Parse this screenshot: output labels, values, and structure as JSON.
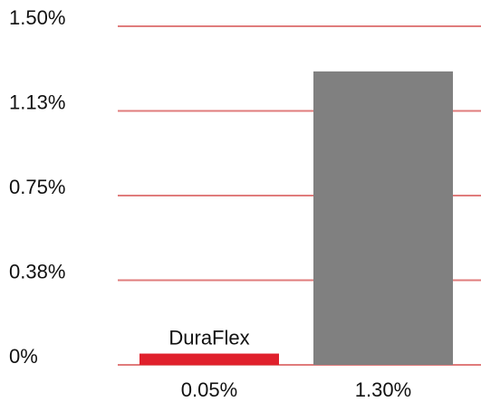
{
  "chart_data": {
    "type": "bar",
    "categories": [
      "0.05%",
      "1.30%"
    ],
    "values": [
      0.05,
      1.3
    ],
    "bar_labels": [
      "DuraFlex",
      ""
    ],
    "bar_colors": [
      "#e0202c",
      "#808080"
    ],
    "gridline_color": "#e07c7c",
    "y_ticks": [
      "0%",
      "0.38%",
      "0.75%",
      "1.13%",
      "1.50%"
    ],
    "y_tick_values": [
      0,
      0.375,
      0.75,
      1.125,
      1.5
    ],
    "ylim": [
      0,
      1.5
    ],
    "grid": true,
    "title": "",
    "xlabel": "",
    "ylabel": ""
  }
}
